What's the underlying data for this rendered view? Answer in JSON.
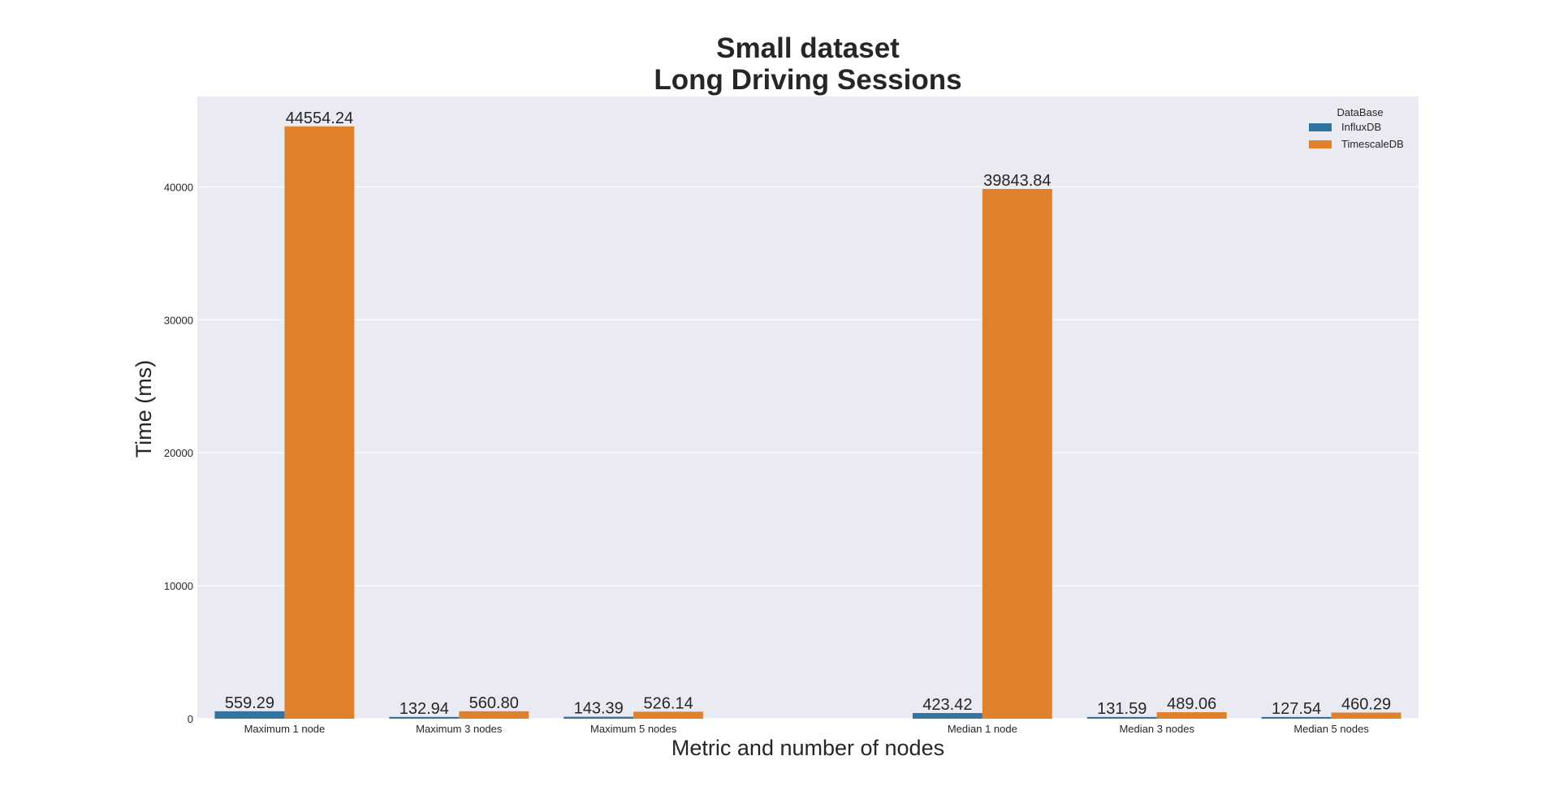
{
  "chart_data": {
    "type": "bar",
    "title": "Small dataset",
    "subtitle": "Long Driving Sessions",
    "xlabel": "Metric and number of nodes",
    "ylabel": "Time (ms)",
    "categories": [
      "Maximum 1 node",
      "Maximum 3 nodes",
      "Maximum 5 nodes",
      "",
      "Median 1 node",
      "Median 3 nodes",
      "Median 5 nodes"
    ],
    "series": [
      {
        "name": "InfluxDB",
        "color": "#3274a1",
        "values": [
          559.29,
          132.94,
          143.39,
          null,
          423.42,
          131.59,
          127.54
        ]
      },
      {
        "name": "TimescaleDB",
        "color": "#e1812c",
        "values": [
          44554.24,
          560.8,
          526.14,
          null,
          39843.84,
          489.06,
          460.29
        ]
      }
    ],
    "data_labels": [
      [
        "559.29",
        "132.94",
        "143.39",
        null,
        "423.42",
        "131.59",
        "127.54"
      ],
      [
        "44554.24",
        "560.80",
        "526.14",
        null,
        "39843.84",
        "489.06",
        "460.29"
      ]
    ],
    "ylim": [
      0,
      46800
    ],
    "yticks": [
      0,
      10000,
      20000,
      30000,
      40000
    ],
    "grid": true,
    "legend": {
      "title": "DataBase",
      "placement": "top-right"
    },
    "background": "#eaeaf2"
  }
}
